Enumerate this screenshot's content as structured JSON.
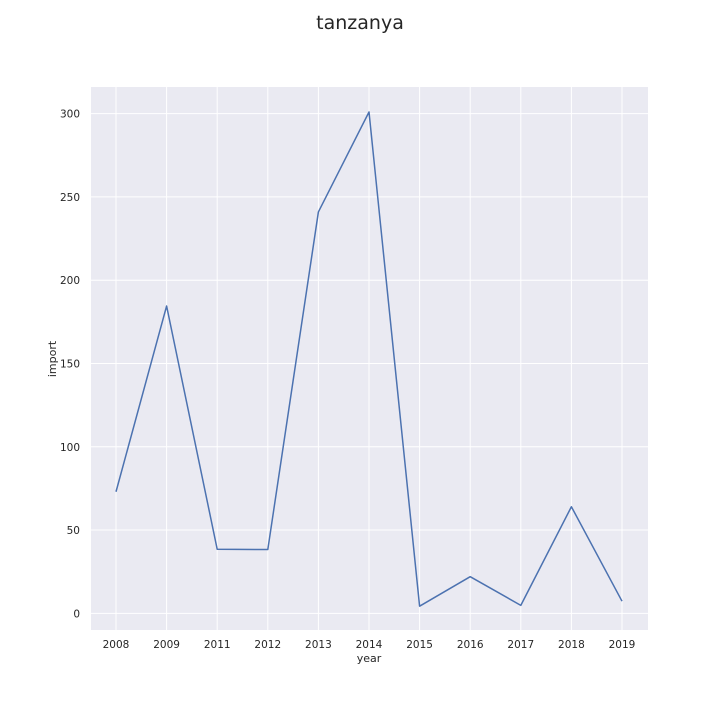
{
  "chart_data": {
    "type": "line",
    "title": "tanzanya",
    "xlabel": "year",
    "ylabel": "import",
    "categories": [
      "2008",
      "2009",
      "2011",
      "2012",
      "2013",
      "2014",
      "2015",
      "2016",
      "2017",
      "2018",
      "2019"
    ],
    "series": [
      {
        "values": [
          73,
          184.5,
          38.5,
          38.3,
          241,
          301,
          4.3,
          22,
          4.8,
          64,
          7.3
        ]
      }
    ],
    "yticks": [
      0,
      50,
      100,
      150,
      200,
      250,
      300
    ],
    "ylim": [
      -10,
      316
    ],
    "grid": true,
    "colors": {
      "background": "#eaeaf2",
      "grid": "#ffffff",
      "line": "#4c72b0",
      "text": "#262626"
    }
  }
}
